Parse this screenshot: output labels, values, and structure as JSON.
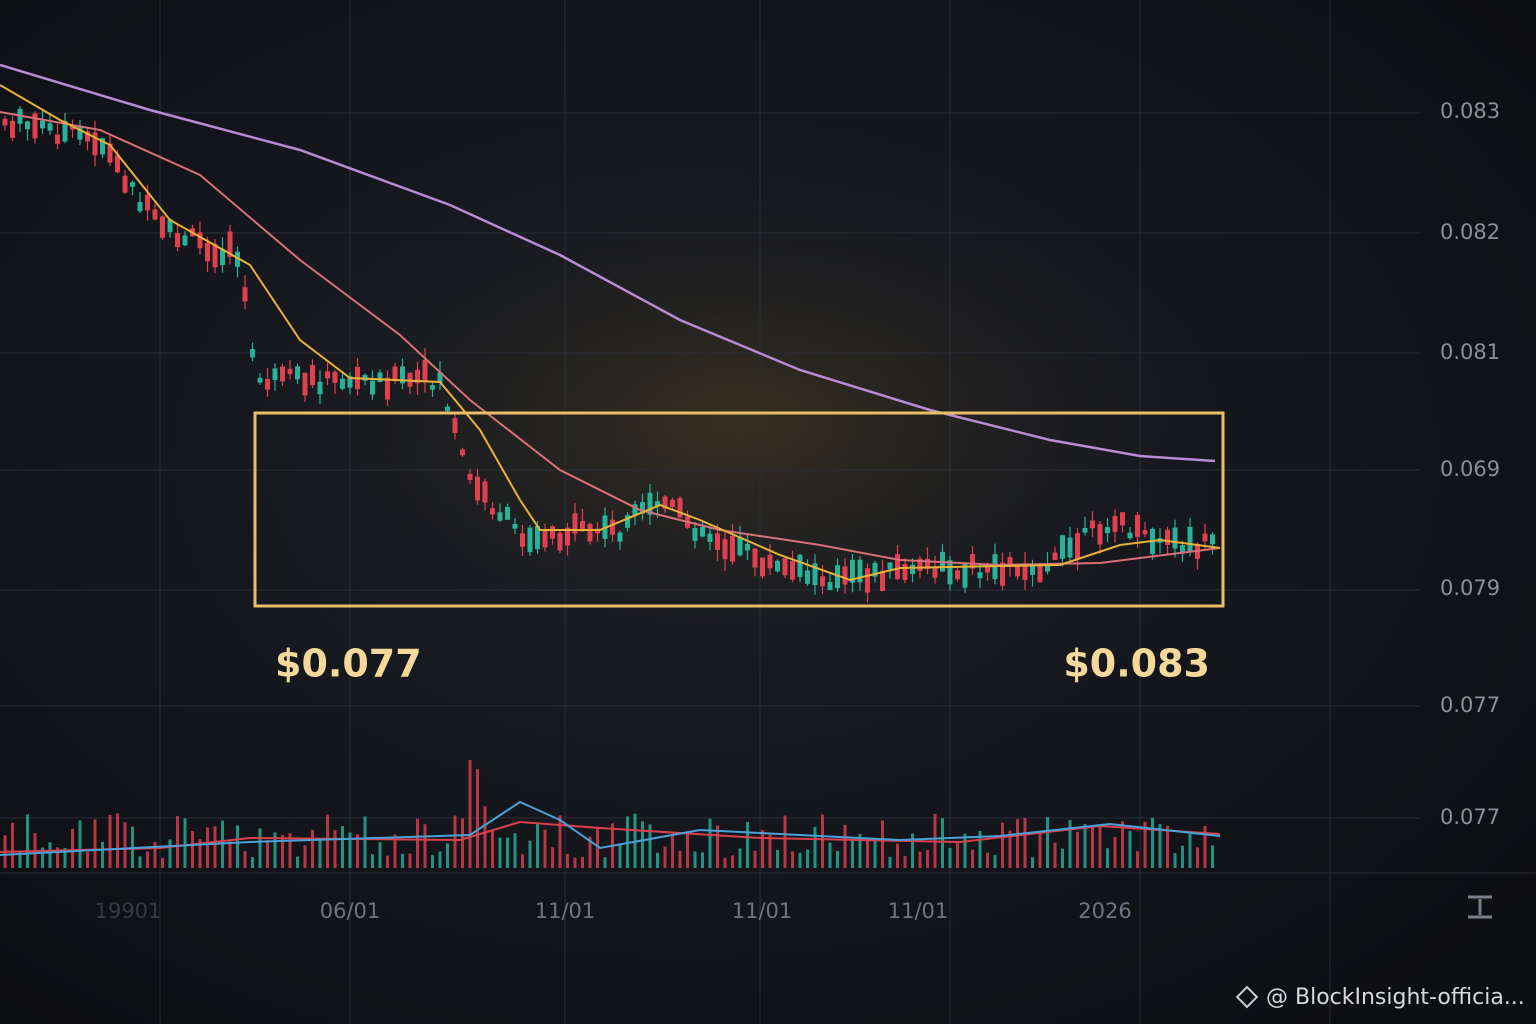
{
  "axis": {
    "price_labels": [
      "0.083",
      "0.082",
      "0.081",
      "0.069",
      "0.079",
      "0.077",
      "0.077"
    ],
    "date_labels": [
      "19901",
      "06/01",
      "11/01",
      "11/01",
      "11/01",
      "2026"
    ]
  },
  "annotations": {
    "low": "$0.077",
    "high": "$0.083"
  },
  "watermark": "@ BlockInsight-officia..."
}
